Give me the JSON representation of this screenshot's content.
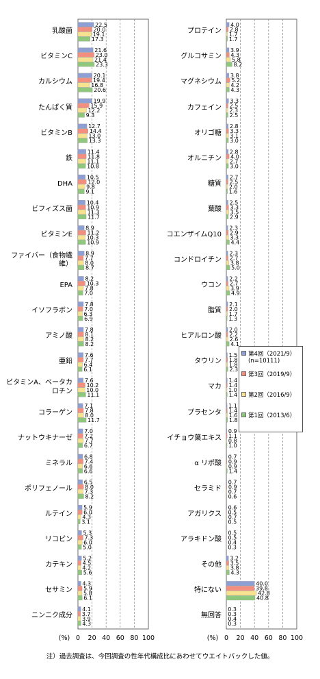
{
  "chart_data": {
    "type": "bar",
    "orientation": "horizontal",
    "categories": [
      "乳酸菌",
      "ビタミンC",
      "カルシウム",
      "たんぱく質",
      "ビタミンB",
      "鉄",
      "DHA",
      "ビフィズス菌",
      "ビタミンE",
      "ファイバー（食物繊維）",
      "EPA",
      "イソフラボン",
      "アミノ酸",
      "亜鉛",
      "ビタミンA、ベータカロチン",
      "コラーゲン",
      "ナットウキナーゼ",
      "ミネラル",
      "ポリフェノール",
      "ルテイン",
      "リコピン",
      "カテキン",
      "セサミン",
      "ニンニク成分",
      "プロテイン",
      "グルコサミン",
      "マグネシウム",
      "カフェイン",
      "オリゴ糖",
      "オルニチン",
      "糖質",
      "葉酸",
      "コエンザイムQ10",
      "コンドロイチン",
      "ウコン",
      "脂質",
      "ヒアルロン酸",
      "タウリン",
      "マカ",
      "プラセンタ",
      "イチョウ葉エキス",
      "α リポ酸",
      "セラミド",
      "アガリクス",
      "アラキドン酸",
      "その他",
      "特にない",
      "無回答"
    ],
    "series": [
      {
        "name": "第4回（2021/9）(n=10111)",
        "color": "#8e9fd4",
        "values": [
          22.5,
          21.6,
          20.1,
          19.9,
          12.7,
          11.4,
          10.5,
          10.4,
          8.9,
          8.9,
          8.2,
          7.8,
          7.8,
          7.6,
          7.6,
          7.1,
          7.0,
          6.8,
          6.5,
          5.9,
          5.3,
          5.2,
          4.3,
          4.1,
          4.0,
          3.9,
          3.8,
          3.3,
          2.8,
          2.8,
          2.7,
          2.5,
          2.3,
          2.3,
          2.2,
          2.1,
          2.0,
          1.5,
          1.4,
          1.1,
          0.9,
          0.7,
          0.7,
          0.6,
          0.5,
          3.2,
          40.0,
          0.3
        ],
        "value_labels": [
          "22.5",
          "21.6",
          "20.1",
          "19.9",
          "12.7",
          "11.4",
          "10.5",
          "10.4",
          "8.9",
          "8.9",
          "8.2",
          "7.8",
          "7.8",
          "7.6",
          "7.6",
          "7.1",
          "7.0",
          "6.8",
          "6.5",
          "5.9",
          "5.3",
          "5.2",
          "4.3",
          "4.1",
          "4.0",
          "3.9",
          "3.8",
          "3.3",
          "2.8",
          "2.8",
          "2.7",
          "2.5",
          "2.3",
          "2.3",
          "2.2",
          "2.1",
          "2.0",
          "1.5",
          "1.4",
          "1.1",
          "0.9",
          "0.7",
          "0.7",
          "0.6",
          "0.5",
          "3.2",
          "40.0",
          "0.3"
        ]
      },
      {
        "name": "第3回（2019/9）",
        "color": "#f28f7f",
        "values": [
          20.0,
          23.0,
          19.4,
          15.9,
          14.4,
          11.8,
          12.0,
          10.9,
          11.2,
          7.7,
          10.3,
          7.0,
          8.1,
          7.7,
          10.2,
          7.8,
          7.2,
          7.4,
          8.0,
          6.0,
          7.3,
          4.5,
          5.9,
          3.7,
          2.8,
          4.3,
          5.2,
          2.5,
          3.3,
          4.0,
          2.5,
          3.3,
          2.9,
          2.7,
          2.7,
          2.0,
          2.2,
          1.8,
          1.4,
          1.4,
          1.1,
          0.9,
          0.9,
          0.5,
          0.5,
          3.5,
          39.8,
          0.3
        ],
        "value_labels": [
          "20.0",
          "23.0",
          "19.4",
          "15.9",
          "14.4",
          "11.8",
          "12.0",
          "10.9",
          "11.2",
          "7.7",
          "10.3",
          "7.0",
          "8.1",
          "7.7",
          "10.2",
          "7.8",
          "7.2",
          "7.4",
          "8.0",
          "6.0",
          "7.3",
          "4.5",
          "5.9",
          "3.7",
          "2.8",
          "4.3",
          "5.2",
          "2.5",
          "3.3",
          "4.0",
          "2.5",
          "3.3",
          "2.9",
          "2.7",
          "2.7",
          "2.0",
          "2.2",
          "1.8",
          "1.4",
          "1.4",
          "1.1",
          "0.9",
          "0.9",
          "0.5",
          "0.5",
          "3.5",
          "39.8",
          "0.3"
        ]
      },
      {
        "name": "第2回（2016/9）",
        "color": "#f7e38f",
        "values": [
          19.1,
          21.4,
          16.8,
          12.2,
          13.0,
          11.1,
          9.8,
          11.3,
          10.3,
          8.0,
          7.8,
          6.3,
          8.2,
          6.4,
          10.0,
          8.0,
          7.7,
          6.6,
          7.3,
          4.3,
          6.0,
          4.2,
          5.8,
          3.9,
          1.7,
          5.8,
          4.2,
          2.3,
          3.1,
          2.7,
          2.0,
          3.5,
          3.3,
          3.8,
          3.9,
          1.7,
          2.6,
          1.8,
          1.0,
          1.6,
          0.8,
          0.9,
          0.7,
          0.7,
          0.4,
          3.8,
          42.8,
          0.4
        ],
        "value_labels": [
          "19.1",
          "21.4",
          "16.8",
          "12.2",
          "13.0",
          "11.1",
          "9.8",
          "11.3",
          "10.3",
          "8.0",
          "7.8",
          "6.3",
          "8.2",
          "6.4",
          "10.0",
          "8.0",
          "7.7",
          "6.6",
          "7.3",
          "4.3",
          "6.0",
          "4.2",
          "5.8",
          "3.9",
          "1.7",
          "5.8",
          "4.2",
          "2.3",
          "3.1",
          "2.7",
          "2.0",
          "3.5",
          "3.3",
          "3.8",
          "3.9",
          "1.7",
          "2.6",
          "1.8",
          "1.0",
          "1.6",
          "0.8",
          "0.9",
          "0.7",
          "0.7",
          "0.4",
          "3.8",
          "42.8",
          "0.4"
        ]
      },
      {
        "name": "第1回（2013/6）",
        "color": "#8fc77c",
        "values": [
          17.3,
          23.3,
          20.6,
          9.3,
          13.3,
          10.8,
          9.1,
          11.7,
          10.9,
          8.7,
          7.0,
          6.9,
          8.2,
          6.1,
          11.1,
          11.7,
          6.7,
          6.6,
          8.2,
          3.1,
          5.0,
          5.6,
          6.1,
          4.3,
          1.7,
          8.2,
          4.3,
          2.5,
          3.0,
          3.0,
          1.6,
          2.9,
          4.4,
          5.0,
          4.9,
          1.3,
          4.1,
          2.3,
          1.4,
          1.8,
          1.0,
          1.4,
          0.6,
          0.5,
          0.3,
          4.3,
          40.8,
          0.3
        ],
        "value_labels": [
          "17.3",
          "23.3",
          "20.6",
          "9.3",
          "13.3",
          "10.8",
          "9.1",
          "11.7",
          "10.9",
          "8.7",
          "7.0",
          "6.9",
          "8.2",
          "6.1",
          "11.1",
          "11.7",
          "6.7",
          "6.6",
          "8.2",
          "3.1",
          "5.0",
          "5.6",
          "6.1",
          "4.3",
          "1.7",
          "8.2",
          "4.3",
          "2.5",
          "3.0",
          "3.0",
          "1.6",
          "2.9",
          "4.4",
          "5.0",
          "4.9",
          "1.3",
          "4.1",
          "2.3",
          "1.4",
          "1.8",
          "1.0",
          "1.4",
          "0.6",
          "0.5",
          "0.3",
          "4.3",
          "40.8",
          "0.3"
        ]
      }
    ],
    "xlabel": "(%)",
    "xlim": [
      0,
      100
    ],
    "xticks": [
      0,
      20,
      40,
      60,
      80,
      100
    ],
    "grid": true,
    "note": "注）過去調査は、今回調査の性年代構成比にあわせてウエイトバックした値。"
  }
}
